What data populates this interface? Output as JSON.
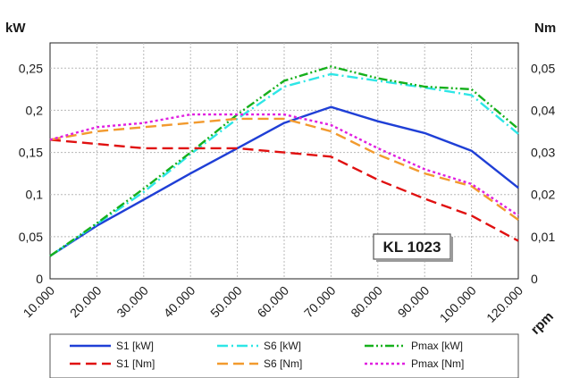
{
  "chart_data": {
    "type": "line",
    "xlabel": "rpm",
    "y_left_label": "kW",
    "y_right_label": "Nm",
    "badge": "KL 1023",
    "x_ticks": [
      10000,
      20000,
      30000,
      40000,
      50000,
      60000,
      70000,
      80000,
      90000,
      100000,
      120000
    ],
    "x_tick_labels": [
      "10.000",
      "20.000",
      "30.000",
      "40.000",
      "50.000",
      "60.000",
      "70.000",
      "80.000",
      "90.000",
      "100.000",
      "120.000"
    ],
    "y_left_ticks": [
      "0",
      "0,05",
      "0,1",
      "0,15",
      "0,2",
      "0,25"
    ],
    "y_right_ticks": [
      "0",
      "0,01",
      "0,02",
      "0,03",
      "0,04",
      "0,05"
    ],
    "ylim_left": [
      0,
      0.28
    ],
    "ylim_right": [
      0,
      0.056
    ],
    "grid": true,
    "series": [
      {
        "name": "S1 [kW]",
        "axis": "left",
        "color": "#1f3fd6",
        "dash": "solid",
        "x": [
          10000,
          20000,
          30000,
          40000,
          50000,
          60000,
          70000,
          80000,
          90000,
          100000,
          120000
        ],
        "y": [
          0.027,
          0.063,
          0.094,
          0.125,
          0.155,
          0.185,
          0.204,
          0.187,
          0.173,
          0.152,
          0.108
        ]
      },
      {
        "name": "S6 [kW]",
        "axis": "left",
        "color": "#2ee6e6",
        "dash": "dashdot",
        "x": [
          10000,
          20000,
          30000,
          40000,
          50000,
          60000,
          70000,
          80000,
          90000,
          100000,
          120000
        ],
        "y": [
          0.027,
          0.065,
          0.103,
          0.148,
          0.19,
          0.228,
          0.243,
          0.235,
          0.227,
          0.218,
          0.172
        ]
      },
      {
        "name": "Pmax [kW]",
        "axis": "left",
        "color": "#16b01c",
        "dash": "dashdotdot",
        "x": [
          10000,
          20000,
          30000,
          40000,
          50000,
          60000,
          70000,
          80000,
          90000,
          100000,
          120000
        ],
        "y": [
          0.027,
          0.066,
          0.107,
          0.15,
          0.195,
          0.235,
          0.252,
          0.238,
          0.228,
          0.225,
          0.178
        ]
      },
      {
        "name": "S1 [Nm]",
        "axis": "right",
        "color": "#e01010",
        "dash": "dash",
        "x": [
          10000,
          20000,
          30000,
          40000,
          50000,
          60000,
          70000,
          80000,
          90000,
          100000,
          120000
        ],
        "y": [
          0.033,
          0.032,
          0.031,
          0.031,
          0.031,
          0.03,
          0.029,
          0.0235,
          0.019,
          0.015,
          0.009
        ]
      },
      {
        "name": "S6 [Nm]",
        "axis": "right",
        "color": "#f29a2e",
        "dash": "dash",
        "x": [
          10000,
          20000,
          30000,
          40000,
          50000,
          60000,
          70000,
          80000,
          90000,
          100000,
          120000
        ],
        "y": [
          0.033,
          0.035,
          0.036,
          0.037,
          0.038,
          0.038,
          0.035,
          0.0295,
          0.025,
          0.022,
          0.014
        ]
      },
      {
        "name": "Pmax [Nm]",
        "axis": "right",
        "color": "#e020e0",
        "dash": "dot",
        "x": [
          10000,
          20000,
          30000,
          40000,
          50000,
          60000,
          70000,
          80000,
          90000,
          100000,
          120000
        ],
        "y": [
          0.033,
          0.036,
          0.037,
          0.039,
          0.039,
          0.039,
          0.0365,
          0.031,
          0.026,
          0.0225,
          0.015
        ]
      }
    ]
  }
}
